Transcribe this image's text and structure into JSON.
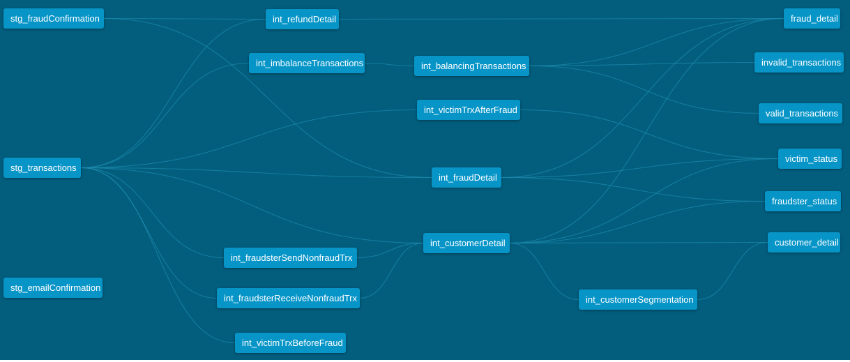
{
  "colors": {
    "canvas": "#035d7c",
    "node": "#0795c8",
    "edge": "#1b89ad",
    "text": "#ffffff"
  },
  "nodes": {
    "stg_fraudConfirmation": "stg_fraudConfirmation",
    "stg_transactions": "stg_transactions",
    "stg_emailConfirmation": "stg_emailConfirmation",
    "int_refundDetail": "int_refundDetail",
    "int_imbalanceTransactions": "int_imbalanceTransactions",
    "int_balancingTransactions": "int_balancingTransactions",
    "int_victimTrxAfterFraud": "int_victimTrxAfterFraud",
    "int_fraudDetail": "int_fraudDetail",
    "int_customerDetail": "int_customerDetail",
    "int_fraudsterSendNonfraudTrx": "int_fraudsterSendNonfraudTrx",
    "int_fraudsterReceiveNonfraudTrx": "int_fraudsterReceiveNonfraudTrx",
    "int_victimTrxBeforeFraud": "int_victimTrxBeforeFraud",
    "int_customerSegmentation": "int_customerSegmentation",
    "fraud_detail": "fraud_detail",
    "invalid_transactions": "invalid_transactions",
    "valid_transactions": "valid_transactions",
    "victim_status": "victim_status",
    "fraudster_status": "fraudster_status",
    "customer_detail": "customer_detail"
  },
  "edges": [
    [
      "stg_fraudConfirmation",
      "int_fraudDetail"
    ],
    [
      "stg_fraudConfirmation",
      "int_refundDetail"
    ],
    [
      "stg_transactions",
      "int_refundDetail"
    ],
    [
      "stg_transactions",
      "int_imbalanceTransactions"
    ],
    [
      "stg_transactions",
      "int_victimTrxAfterFraud"
    ],
    [
      "stg_transactions",
      "int_fraudDetail"
    ],
    [
      "stg_transactions",
      "int_customerDetail"
    ],
    [
      "stg_transactions",
      "int_fraudsterSendNonfraudTrx"
    ],
    [
      "stg_transactions",
      "int_fraudsterReceiveNonfraudTrx"
    ],
    [
      "stg_transactions",
      "int_victimTrxBeforeFraud"
    ],
    [
      "int_imbalanceTransactions",
      "int_balancingTransactions"
    ],
    [
      "int_refundDetail",
      "fraud_detail"
    ],
    [
      "int_balancingTransactions",
      "fraud_detail"
    ],
    [
      "int_balancingTransactions",
      "invalid_transactions"
    ],
    [
      "int_balancingTransactions",
      "valid_transactions"
    ],
    [
      "int_victimTrxAfterFraud",
      "victim_status"
    ],
    [
      "int_fraudDetail",
      "fraud_detail"
    ],
    [
      "int_fraudDetail",
      "victim_status"
    ],
    [
      "int_fraudDetail",
      "fraudster_status"
    ],
    [
      "int_customerDetail",
      "fraud_detail"
    ],
    [
      "int_customerDetail",
      "victim_status"
    ],
    [
      "int_customerDetail",
      "fraudster_status"
    ],
    [
      "int_customerDetail",
      "customer_detail"
    ],
    [
      "int_customerDetail",
      "int_customerSegmentation"
    ],
    [
      "int_fraudsterSendNonfraudTrx",
      "int_customerDetail"
    ],
    [
      "int_fraudsterReceiveNonfraudTrx",
      "int_customerDetail"
    ],
    [
      "int_customerSegmentation",
      "customer_detail"
    ]
  ]
}
